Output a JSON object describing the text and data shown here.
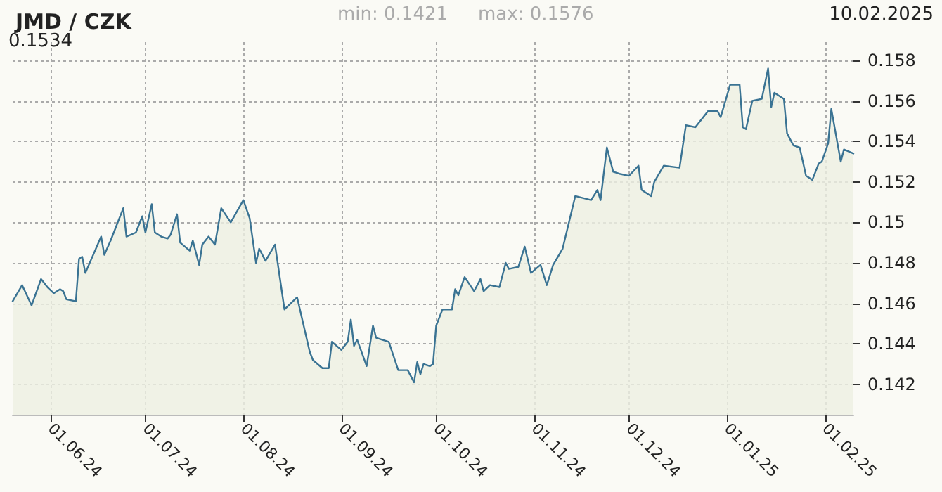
{
  "chart_data": {
    "type": "area",
    "title": "JMD / CZK",
    "annotations": [
      "min: 0.1421",
      "max: 0.1576",
      "10.02.2025",
      "0.1534"
    ],
    "x": [
      "2024-05-20",
      "2024-05-23",
      "2024-05-26",
      "2024-05-29",
      "2024-05-31",
      "2024-06-02",
      "2024-06-04",
      "2024-06-05",
      "2024-06-06",
      "2024-06-09",
      "2024-06-10",
      "2024-06-11",
      "2024-06-12",
      "2024-06-17",
      "2024-06-18",
      "2024-06-20",
      "2024-06-24",
      "2024-06-25",
      "2024-06-28",
      "2024-06-30",
      "2024-07-01",
      "2024-07-03",
      "2024-07-04",
      "2024-07-06",
      "2024-07-08",
      "2024-07-09",
      "2024-07-11",
      "2024-07-12",
      "2024-07-15",
      "2024-07-16",
      "2024-07-18",
      "2024-07-19",
      "2024-07-21",
      "2024-07-23",
      "2024-07-25",
      "2024-07-28",
      "2024-08-01",
      "2024-08-03",
      "2024-08-05",
      "2024-08-06",
      "2024-08-08",
      "2024-08-11",
      "2024-08-14",
      "2024-08-18",
      "2024-08-22",
      "2024-08-23",
      "2024-08-26",
      "2024-08-28",
      "2024-08-29",
      "2024-09-01",
      "2024-09-03",
      "2024-09-04",
      "2024-09-05",
      "2024-09-06",
      "2024-09-09",
      "2024-09-11",
      "2024-09-12",
      "2024-09-16",
      "2024-09-19",
      "2024-09-22",
      "2024-09-24",
      "2024-09-25",
      "2024-09-26",
      "2024-09-27",
      "2024-09-29",
      "2024-09-30",
      "2024-10-01",
      "2024-10-03",
      "2024-10-06",
      "2024-10-07",
      "2024-10-08",
      "2024-10-10",
      "2024-10-13",
      "2024-10-15",
      "2024-10-16",
      "2024-10-18",
      "2024-10-21",
      "2024-10-23",
      "2024-10-24",
      "2024-10-27",
      "2024-10-29",
      "2024-10-31",
      "2024-11-03",
      "2024-11-05",
      "2024-11-07",
      "2024-11-10",
      "2024-11-14",
      "2024-11-19",
      "2024-11-21",
      "2024-11-22",
      "2024-11-24",
      "2024-11-26",
      "2024-11-28",
      "2024-12-01",
      "2024-12-04",
      "2024-12-05",
      "2024-12-08",
      "2024-12-09",
      "2024-12-12",
      "2024-12-17",
      "2024-12-19",
      "2024-12-22",
      "2024-12-26",
      "2024-12-29",
      "2024-12-30",
      "2025-01-02",
      "2025-01-05",
      "2025-01-06",
      "2025-01-07",
      "2025-01-09",
      "2025-01-12",
      "2025-01-14",
      "2025-01-15",
      "2025-01-16",
      "2025-01-19",
      "2025-01-20",
      "2025-01-22",
      "2025-01-24",
      "2025-01-26",
      "2025-01-28",
      "2025-01-30",
      "2025-01-31",
      "2025-02-02",
      "2025-02-03",
      "2025-02-06",
      "2025-02-07",
      "2025-02-10"
    ],
    "series": [
      {
        "color": "#3a7393",
        "values": [
          0.1461,
          0.1469,
          0.1459,
          0.1472,
          0.1468,
          0.1465,
          0.1467,
          0.1466,
          0.1462,
          0.1461,
          0.1482,
          0.1483,
          0.1475,
          0.1493,
          0.1484,
          0.1491,
          0.1507,
          0.1493,
          0.1495,
          0.1503,
          0.1495,
          0.1509,
          0.1495,
          0.1493,
          0.1492,
          0.1494,
          0.1504,
          0.149,
          0.1486,
          0.1491,
          0.1479,
          0.1489,
          0.1493,
          0.1489,
          0.1507,
          0.15,
          0.1511,
          0.1502,
          0.148,
          0.1487,
          0.1481,
          0.1489,
          0.1457,
          0.1463,
          0.1436,
          0.1432,
          0.1428,
          0.1428,
          0.1441,
          0.1437,
          0.1441,
          0.1452,
          0.1439,
          0.1442,
          0.1429,
          0.1449,
          0.1443,
          0.1441,
          0.1427,
          0.1427,
          0.1421,
          0.1431,
          0.1425,
          0.143,
          0.1429,
          0.143,
          0.1449,
          0.1457,
          0.1457,
          0.1467,
          0.1464,
          0.1473,
          0.1466,
          0.1472,
          0.1466,
          0.1469,
          0.1468,
          0.148,
          0.1477,
          0.1478,
          0.1488,
          0.1475,
          0.1479,
          0.1469,
          0.1479,
          0.1487,
          0.1513,
          0.1511,
          0.1516,
          0.1511,
          0.1537,
          0.1525,
          0.1524,
          0.1523,
          0.1528,
          0.1516,
          0.1513,
          0.152,
          0.1528,
          0.1527,
          0.1548,
          0.1547,
          0.1555,
          0.1555,
          0.1552,
          0.1568,
          0.1568,
          0.1547,
          0.1546,
          0.156,
          0.1561,
          0.1576,
          0.1557,
          0.1564,
          0.1561,
          0.1544,
          0.1538,
          0.1537,
          0.1523,
          0.1521,
          0.1529,
          0.153,
          0.1539,
          0.1556,
          0.153,
          0.1536,
          0.1534
        ]
      }
    ],
    "xlim": [
      "2024-05-20",
      "2025-02-10"
    ],
    "xticks": [
      {
        "value": "2024-06-01",
        "label": "01.06.24"
      },
      {
        "value": "2024-07-01",
        "label": "01.07.24"
      },
      {
        "value": "2024-08-01",
        "label": "01.08.24"
      },
      {
        "value": "2024-09-01",
        "label": "01.09.24"
      },
      {
        "value": "2024-10-01",
        "label": "01.10.24"
      },
      {
        "value": "2024-11-01",
        "label": "01.11.24"
      },
      {
        "value": "2024-12-01",
        "label": "01.12.24"
      },
      {
        "value": "2025-01-01",
        "label": "01.01.25"
      },
      {
        "value": "2025-02-01",
        "label": "01.02.25"
      }
    ],
    "ylim": [
      0.1405,
      0.1589
    ],
    "yticks": [
      0.142,
      0.144,
      0.146,
      0.148,
      0.15,
      0.152,
      0.154,
      0.156,
      0.158
    ],
    "grid": true,
    "line_style": "solid",
    "marker": "none"
  }
}
